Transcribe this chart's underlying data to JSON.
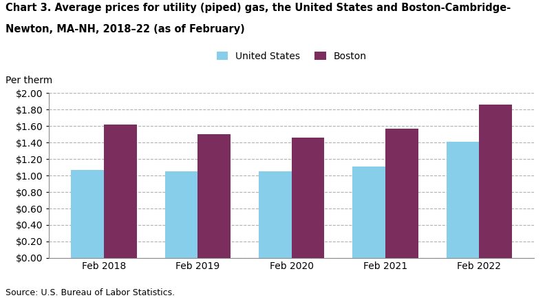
{
  "categories": [
    "Feb 2018",
    "Feb 2019",
    "Feb 2020",
    "Feb 2021",
    "Feb 2022"
  ],
  "us_values": [
    1.07,
    1.05,
    1.05,
    1.11,
    1.41
  ],
  "boston_values": [
    1.62,
    1.5,
    1.46,
    1.57,
    1.86
  ],
  "us_color": "#87CEEB",
  "boston_color": "#7B2D5E",
  "us_label": "United States",
  "boston_label": "Boston",
  "per_therm_label": "Per therm",
  "ylim": [
    0.0,
    2.0
  ],
  "yticks": [
    0.0,
    0.2,
    0.4,
    0.6,
    0.8,
    1.0,
    1.2,
    1.4,
    1.6,
    1.8,
    2.0
  ],
  "title_line1": "Chart 3. Average prices for utility (piped) gas, the United States and Boston-Cambridge-",
  "title_line2": "Newton, MA-NH, 2018–22 (as of February)",
  "source": "Source: U.S. Bureau of Labor Statistics.",
  "bar_width": 0.35,
  "background_color": "#ffffff",
  "grid_color": "#b0b0b0",
  "title_fontsize": 10.5,
  "axis_fontsize": 10,
  "legend_fontsize": 10,
  "source_fontsize": 9
}
